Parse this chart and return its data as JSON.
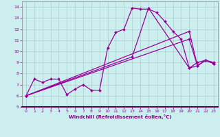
{
  "title": "",
  "xlabel": "Windchill (Refroidissement éolien,°C)",
  "bg_color": "#cceeee",
  "grid_color": "#aacccc",
  "line_color": "#990099",
  "marker_color": "#990099",
  "xlim": [
    -0.5,
    23.5
  ],
  "ylim": [
    5,
    14.5
  ],
  "yticks": [
    5,
    6,
    7,
    8,
    9,
    10,
    11,
    12,
    13,
    14
  ],
  "xticks": [
    0,
    1,
    2,
    3,
    4,
    5,
    6,
    7,
    8,
    9,
    10,
    11,
    12,
    13,
    14,
    15,
    16,
    17,
    18,
    19,
    20,
    21,
    22,
    23
  ],
  "series1_x": [
    0,
    1,
    2,
    3,
    4,
    5,
    6,
    7,
    8,
    9,
    10,
    11,
    12,
    13,
    14,
    15,
    16,
    17,
    18,
    19,
    20,
    21,
    22,
    23
  ],
  "series1_y": [
    6.0,
    7.5,
    7.2,
    7.5,
    7.5,
    6.1,
    6.6,
    7.0,
    6.5,
    6.5,
    10.3,
    11.7,
    12.0,
    13.9,
    13.8,
    13.8,
    13.5,
    12.7,
    11.8,
    11.1,
    8.5,
    9.0,
    9.2,
    9.0
  ],
  "series2_x": [
    0,
    13,
    15,
    20,
    21,
    22,
    23
  ],
  "series2_y": [
    6.0,
    9.5,
    13.9,
    8.5,
    8.7,
    9.2,
    8.9
  ],
  "series3_x": [
    0,
    20,
    21,
    22,
    23
  ],
  "series3_y": [
    6.0,
    11.8,
    8.7,
    9.2,
    8.9
  ],
  "series4_x": [
    0,
    20,
    21,
    22,
    23
  ],
  "series4_y": [
    6.0,
    11.1,
    8.7,
    9.2,
    8.9
  ]
}
